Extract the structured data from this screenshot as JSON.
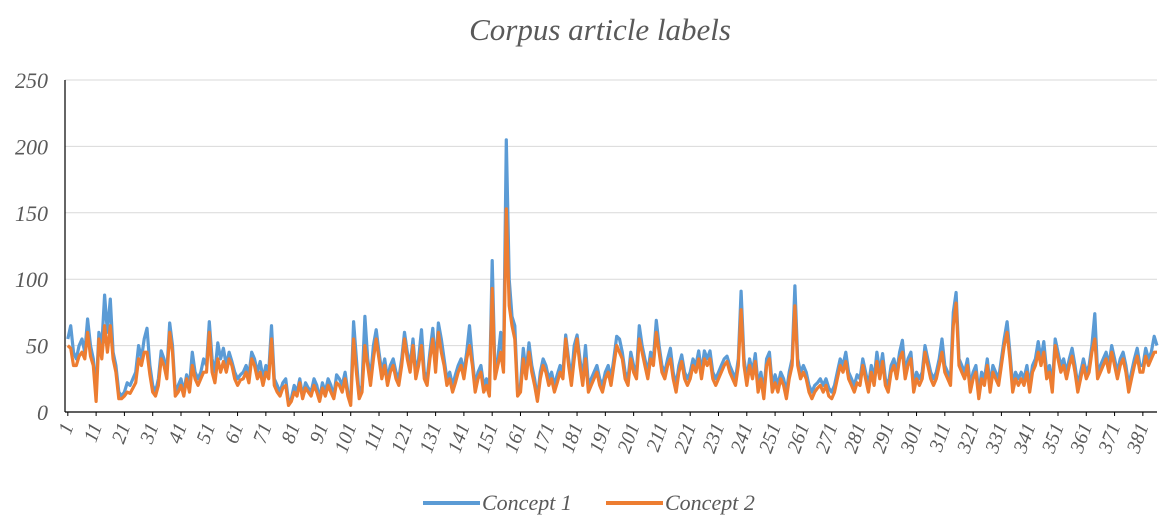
{
  "chart_data": {
    "type": "line",
    "title": "Corpus article  labels",
    "x": [
      1,
      2,
      3,
      4,
      5,
      6,
      7,
      8,
      9,
      10,
      11,
      12,
      13,
      14,
      15,
      16,
      17,
      18,
      19,
      20,
      21,
      22,
      23,
      24,
      25,
      26,
      27,
      28,
      29,
      30,
      31,
      32,
      33,
      34,
      35,
      36,
      37,
      38,
      39,
      40,
      41,
      42,
      43,
      44,
      45,
      46,
      47,
      48,
      49,
      50,
      51,
      52,
      53,
      54,
      55,
      56,
      57,
      58,
      59,
      60,
      61,
      62,
      63,
      64,
      65,
      66,
      67,
      68,
      69,
      70,
      71,
      72,
      73,
      74,
      75,
      76,
      77,
      78,
      79,
      80,
      81,
      82,
      83,
      84,
      85,
      86,
      87,
      88,
      89,
      90,
      91,
      92,
      93,
      94,
      95,
      96,
      97,
      98,
      99,
      100,
      101,
      102,
      103,
      104,
      105,
      106,
      107,
      108,
      109,
      110,
      111,
      112,
      113,
      114,
      115,
      116,
      117,
      118,
      119,
      120,
      121,
      122,
      123,
      124,
      125,
      126,
      127,
      128,
      129,
      130,
      131,
      132,
      133,
      134,
      135,
      136,
      137,
      138,
      139,
      140,
      141,
      142,
      143,
      144,
      145,
      146,
      147,
      148,
      149,
      150,
      151,
      152,
      153,
      154,
      155,
      156,
      157,
      158,
      159,
      160,
      161,
      162,
      163,
      164,
      165,
      166,
      167,
      168,
      169,
      170,
      171,
      172,
      173,
      174,
      175,
      176,
      177,
      178,
      179,
      180,
      181,
      182,
      183,
      184,
      185,
      186,
      187,
      188,
      189,
      190,
      191,
      192,
      193,
      194,
      195,
      196,
      197,
      198,
      199,
      200,
      201,
      202,
      203,
      204,
      205,
      206,
      207,
      208,
      209,
      210,
      211,
      212,
      213,
      214,
      215,
      216,
      217,
      218,
      219,
      220,
      221,
      222,
      223,
      224,
      225,
      226,
      227,
      228,
      229,
      230,
      231,
      232,
      233,
      234,
      235,
      236,
      237,
      238,
      239,
      240,
      241,
      242,
      243,
      244,
      245,
      246,
      247,
      248,
      249,
      250,
      251,
      252,
      253,
      254,
      255,
      256,
      257,
      258,
      259,
      260,
      261,
      262,
      263,
      264,
      265,
      266,
      267,
      268,
      269,
      270,
      271,
      272,
      273,
      274,
      275,
      276,
      277,
      278,
      279,
      280,
      281,
      282,
      283,
      284,
      285,
      286,
      287,
      288,
      289,
      290,
      291,
      292,
      293,
      294,
      295,
      296,
      297,
      298,
      299,
      300,
      301,
      302,
      303,
      304,
      305,
      306,
      307,
      308,
      309,
      310,
      311,
      312,
      313,
      314,
      315,
      316,
      317,
      318,
      319,
      320,
      321,
      322,
      323,
      324,
      325,
      326,
      327,
      328,
      329,
      330,
      331,
      332,
      333,
      334,
      335,
      336,
      337,
      338,
      339,
      340,
      341,
      342,
      343,
      344,
      345,
      346,
      347,
      348,
      349,
      350,
      351,
      352,
      353,
      354,
      355,
      356,
      357,
      358,
      359,
      360,
      361,
      362,
      363,
      364,
      365,
      366,
      367,
      368,
      369,
      370,
      371,
      372,
      373,
      374,
      375,
      376,
      377,
      378,
      379,
      380,
      381,
      382,
      383,
      384,
      385,
      386
    ],
    "series": [
      {
        "name": "Concept 1",
        "color": "#5b9bd5",
        "values": [
          55,
          65,
          45,
          40,
          50,
          55,
          45,
          70,
          50,
          40,
          15,
          60,
          50,
          88,
          60,
          85,
          45,
          35,
          15,
          12,
          15,
          22,
          20,
          25,
          30,
          50,
          40,
          55,
          63,
          35,
          20,
          15,
          25,
          46,
          40,
          30,
          67,
          50,
          15,
          20,
          25,
          15,
          28,
          20,
          45,
          30,
          25,
          30,
          40,
          35,
          68,
          40,
          30,
          52,
          40,
          48,
          35,
          45,
          38,
          30,
          25,
          28,
          30,
          35,
          28,
          45,
          40,
          30,
          38,
          25,
          35,
          30,
          65,
          25,
          20,
          15,
          22,
          25,
          8,
          10,
          20,
          15,
          25,
          12,
          22,
          18,
          15,
          25,
          20,
          10,
          22,
          15,
          25,
          20,
          12,
          28,
          25,
          20,
          30,
          15,
          8,
          68,
          40,
          12,
          20,
          72,
          40,
          25,
          50,
          62,
          45,
          30,
          40,
          25,
          35,
          40,
          30,
          25,
          40,
          60,
          45,
          35,
          55,
          30,
          40,
          62,
          30,
          25,
          45,
          63,
          35,
          67,
          55,
          40,
          25,
          30,
          20,
          28,
          35,
          40,
          30,
          45,
          65,
          40,
          20,
          30,
          35,
          20,
          25,
          15,
          114,
          30,
          40,
          60,
          35,
          205,
          100,
          72,
          65,
          15,
          20,
          48,
          30,
          52,
          35,
          25,
          10,
          30,
          40,
          35,
          25,
          30,
          20,
          28,
          35,
          30,
          58,
          40,
          25,
          50,
          58,
          40,
          25,
          50,
          20,
          25,
          30,
          35,
          25,
          20,
          30,
          35,
          25,
          40,
          57,
          55,
          45,
          30,
          25,
          45,
          35,
          30,
          65,
          50,
          40,
          30,
          45,
          40,
          69,
          50,
          35,
          30,
          40,
          48,
          30,
          20,
          35,
          43,
          30,
          25,
          30,
          40,
          35,
          46,
          30,
          46,
          40,
          46,
          30,
          25,
          30,
          35,
          40,
          42,
          35,
          30,
          25,
          40,
          91,
          40,
          25,
          40,
          30,
          44,
          20,
          30,
          15,
          40,
          45,
          20,
          28,
          20,
          30,
          25,
          15,
          30,
          40,
          95,
          40,
          30,
          35,
          30,
          20,
          15,
          20,
          22,
          25,
          20,
          25,
          18,
          15,
          20,
          30,
          40,
          35,
          45,
          30,
          25,
          20,
          28,
          25,
          40,
          30,
          20,
          35,
          25,
          45,
          30,
          44,
          25,
          20,
          35,
          40,
          30,
          45,
          54,
          30,
          40,
          45,
          20,
          30,
          25,
          30,
          50,
          40,
          30,
          25,
          30,
          40,
          55,
          35,
          30,
          25,
          75,
          90,
          40,
          35,
          30,
          40,
          20,
          30,
          35,
          15,
          30,
          25,
          40,
          20,
          35,
          30,
          25,
          40,
          55,
          68,
          45,
          20,
          30,
          25,
          30,
          25,
          35,
          20,
          35,
          40,
          53,
          40,
          53,
          30,
          35,
          20,
          55,
          45,
          35,
          40,
          30,
          40,
          48,
          35,
          20,
          30,
          40,
          30,
          35,
          50,
          74,
          30,
          35,
          40,
          45,
          35,
          50,
          40,
          30,
          40,
          45,
          35,
          20,
          30,
          40,
          48,
          35,
          35,
          48,
          40,
          45,
          57,
          50
        ]
      },
      {
        "name": "Concept 2",
        "color": "#ed7d31",
        "values": [
          50,
          48,
          35,
          35,
          42,
          45,
          40,
          60,
          42,
          35,
          8,
          55,
          40,
          65,
          45,
          65,
          40,
          30,
          10,
          10,
          12,
          15,
          14,
          18,
          22,
          40,
          35,
          45,
          45,
          28,
          15,
          12,
          20,
          40,
          35,
          25,
          60,
          45,
          12,
          15,
          20,
          12,
          25,
          15,
          35,
          25,
          20,
          25,
          30,
          30,
          60,
          30,
          22,
          40,
          30,
          38,
          30,
          40,
          35,
          25,
          20,
          24,
          25,
          30,
          22,
          40,
          35,
          25,
          30,
          20,
          30,
          25,
          55,
          20,
          15,
          12,
          18,
          20,
          5,
          8,
          15,
          12,
          22,
          10,
          18,
          15,
          12,
          20,
          15,
          8,
          18,
          12,
          20,
          15,
          10,
          22,
          20,
          15,
          25,
          12,
          5,
          55,
          30,
          10,
          15,
          50,
          35,
          20,
          40,
          55,
          40,
          25,
          35,
          20,
          30,
          35,
          25,
          20,
          35,
          55,
          40,
          30,
          50,
          25,
          35,
          50,
          25,
          20,
          40,
          55,
          30,
          60,
          45,
          35,
          20,
          25,
          15,
          22,
          30,
          35,
          25,
          40,
          50,
          35,
          15,
          25,
          30,
          15,
          20,
          12,
          93,
          25,
          35,
          45,
          30,
          153,
          80,
          65,
          55,
          12,
          15,
          40,
          25,
          45,
          30,
          20,
          8,
          25,
          35,
          30,
          20,
          25,
          15,
          22,
          30,
          25,
          55,
          35,
          20,
          40,
          55,
          35,
          20,
          40,
          15,
          20,
          25,
          30,
          20,
          15,
          25,
          30,
          20,
          35,
          50,
          45,
          40,
          25,
          20,
          40,
          30,
          25,
          55,
          45,
          35,
          25,
          40,
          35,
          60,
          45,
          30,
          25,
          35,
          40,
          25,
          15,
          30,
          38,
          25,
          20,
          25,
          35,
          30,
          40,
          25,
          40,
          35,
          40,
          25,
          20,
          25,
          30,
          35,
          38,
          30,
          25,
          20,
          35,
          77,
          35,
          20,
          35,
          25,
          38,
          15,
          25,
          10,
          35,
          40,
          15,
          22,
          15,
          25,
          20,
          10,
          25,
          35,
          80,
          35,
          25,
          30,
          25,
          15,
          10,
          15,
          18,
          20,
          15,
          20,
          12,
          10,
          15,
          25,
          35,
          30,
          38,
          25,
          20,
          15,
          22,
          20,
          35,
          25,
          15,
          30,
          20,
          38,
          25,
          38,
          20,
          15,
          30,
          35,
          25,
          40,
          45,
          25,
          35,
          40,
          15,
          25,
          20,
          25,
          45,
          35,
          25,
          20,
          25,
          35,
          45,
          30,
          25,
          20,
          65,
          82,
          35,
          30,
          25,
          35,
          15,
          25,
          30,
          10,
          25,
          20,
          35,
          15,
          30,
          25,
          20,
          35,
          50,
          60,
          40,
          15,
          25,
          20,
          25,
          20,
          30,
          15,
          30,
          35,
          45,
          35,
          45,
          25,
          30,
          15,
          50,
          40,
          30,
          35,
          25,
          35,
          42,
          30,
          15,
          25,
          35,
          25,
          30,
          45,
          55,
          25,
          30,
          35,
          40,
          30,
          45,
          35,
          25,
          35,
          40,
          30,
          15,
          25,
          35,
          42,
          30,
          30,
          42,
          35,
          40,
          45,
          45
        ]
      }
    ],
    "xlim": [
      0,
      386
    ],
    "xticks": [
      1,
      11,
      21,
      31,
      41,
      51,
      61,
      71,
      81,
      91,
      101,
      111,
      121,
      131,
      141,
      151,
      161,
      171,
      181,
      191,
      201,
      211,
      221,
      231,
      241,
      251,
      261,
      271,
      281,
      291,
      301,
      311,
      321,
      331,
      341,
      351,
      361,
      371,
      381
    ],
    "ylim": [
      0,
      250
    ],
    "yticks": [
      0,
      50,
      100,
      150,
      200,
      250
    ],
    "grid": true,
    "legend": "bottom"
  }
}
